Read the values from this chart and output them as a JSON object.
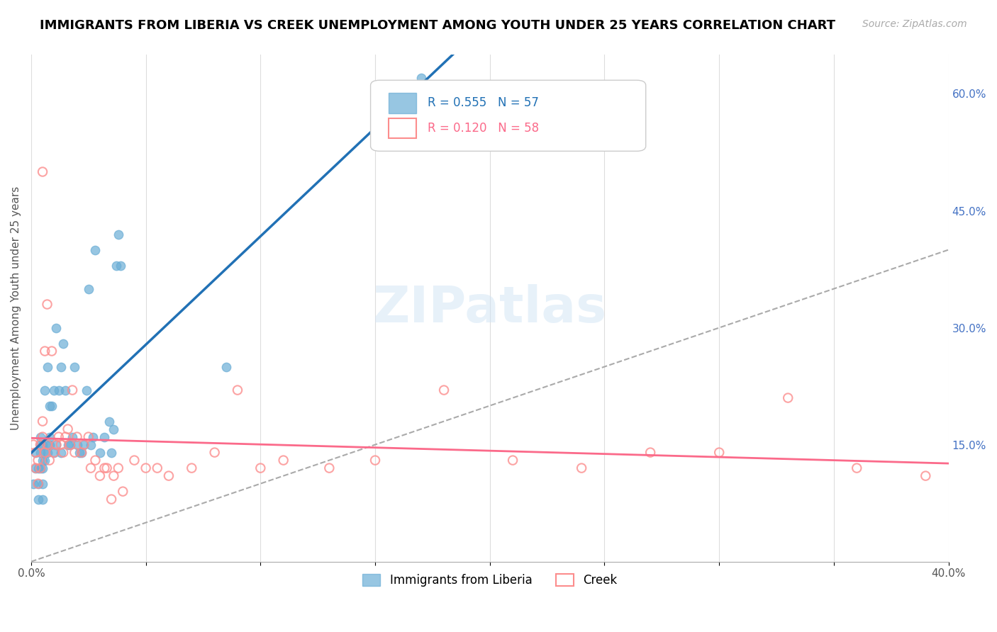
{
  "title": "IMMIGRANTS FROM LIBERIA VS CREEK UNEMPLOYMENT AMONG YOUTH UNDER 25 YEARS CORRELATION CHART",
  "source": "Source: ZipAtlas.com",
  "ylabel": "Unemployment Among Youth under 25 years",
  "xlim": [
    0.0,
    0.4
  ],
  "ylim": [
    0.0,
    0.65
  ],
  "right_y_ticks": [
    0.15,
    0.3,
    0.45,
    0.6
  ],
  "right_y_tick_labels": [
    "15.0%",
    "30.0%",
    "45.0%",
    "60.0%"
  ],
  "blue_R": 0.555,
  "blue_N": 57,
  "pink_R": 0.12,
  "pink_N": 58,
  "blue_color": "#6baed6",
  "pink_color": "#fc8d8d",
  "blue_line_color": "#2171b5",
  "pink_line_color": "#fb6a8a",
  "legend_blue_label": "Immigrants from Liberia",
  "legend_pink_label": "Creek",
  "watermark": "ZIPatlas",
  "blue_x": [
    0.001,
    0.002,
    0.002,
    0.003,
    0.003,
    0.003,
    0.004,
    0.004,
    0.004,
    0.004,
    0.005,
    0.005,
    0.005,
    0.005,
    0.005,
    0.006,
    0.006,
    0.006,
    0.007,
    0.007,
    0.007,
    0.008,
    0.008,
    0.008,
    0.009,
    0.01,
    0.01,
    0.011,
    0.011,
    0.012,
    0.013,
    0.013,
    0.014,
    0.015,
    0.016,
    0.017,
    0.018,
    0.019,
    0.02,
    0.021,
    0.022,
    0.023,
    0.024,
    0.025,
    0.026,
    0.027,
    0.028,
    0.03,
    0.032,
    0.034,
    0.035,
    0.036,
    0.037,
    0.038,
    0.039,
    0.085,
    0.17
  ],
  "blue_y": [
    0.1,
    0.12,
    0.14,
    0.08,
    0.1,
    0.12,
    0.12,
    0.14,
    0.15,
    0.16,
    0.08,
    0.1,
    0.12,
    0.13,
    0.15,
    0.13,
    0.14,
    0.22,
    0.14,
    0.15,
    0.25,
    0.15,
    0.16,
    0.2,
    0.2,
    0.22,
    0.14,
    0.15,
    0.3,
    0.22,
    0.14,
    0.25,
    0.28,
    0.22,
    0.15,
    0.15,
    0.16,
    0.25,
    0.15,
    0.14,
    0.14,
    0.15,
    0.22,
    0.35,
    0.15,
    0.16,
    0.4,
    0.14,
    0.16,
    0.18,
    0.14,
    0.17,
    0.38,
    0.42,
    0.38,
    0.25,
    0.62
  ],
  "pink_x": [
    0.001,
    0.002,
    0.002,
    0.003,
    0.003,
    0.004,
    0.004,
    0.005,
    0.005,
    0.005,
    0.006,
    0.006,
    0.007,
    0.007,
    0.008,
    0.009,
    0.01,
    0.011,
    0.012,
    0.013,
    0.014,
    0.015,
    0.016,
    0.017,
    0.018,
    0.019,
    0.02,
    0.022,
    0.023,
    0.025,
    0.026,
    0.028,
    0.03,
    0.032,
    0.033,
    0.035,
    0.036,
    0.038,
    0.04,
    0.045,
    0.05,
    0.055,
    0.06,
    0.07,
    0.08,
    0.09,
    0.1,
    0.11,
    0.13,
    0.15,
    0.18,
    0.21,
    0.24,
    0.27,
    0.3,
    0.33,
    0.36,
    0.39
  ],
  "pink_y": [
    0.15,
    0.12,
    0.14,
    0.1,
    0.13,
    0.15,
    0.12,
    0.16,
    0.18,
    0.5,
    0.14,
    0.27,
    0.15,
    0.33,
    0.13,
    0.27,
    0.14,
    0.15,
    0.16,
    0.15,
    0.14,
    0.16,
    0.17,
    0.15,
    0.22,
    0.14,
    0.16,
    0.14,
    0.15,
    0.16,
    0.12,
    0.13,
    0.11,
    0.12,
    0.12,
    0.08,
    0.11,
    0.12,
    0.09,
    0.13,
    0.12,
    0.12,
    0.11,
    0.12,
    0.14,
    0.22,
    0.12,
    0.13,
    0.12,
    0.13,
    0.22,
    0.13,
    0.12,
    0.14,
    0.14,
    0.21,
    0.12,
    0.11
  ]
}
